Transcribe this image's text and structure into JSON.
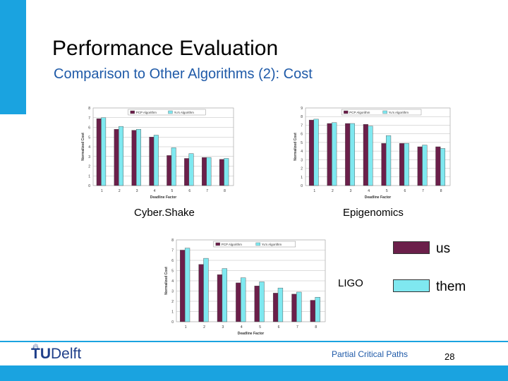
{
  "slide": {
    "title": "Performance Evaluation",
    "subtitle": "Comparison to Other Algorithms (2): Cost",
    "footer_text": "Partial Critical Paths",
    "page_number": "28",
    "logo_text_bold": "TU",
    "logo_text": "Delft"
  },
  "legend": {
    "us_label": "us",
    "them_label": "them",
    "us_color": "#6b1f4a",
    "them_color": "#7fe8f0"
  },
  "captions": {
    "cybershake": "Cyber.Shake",
    "epigenomics": "Epigenomics",
    "ligo": "LIGO"
  },
  "chart_data": [
    {
      "type": "bar",
      "categories": [
        "1",
        "2",
        "3",
        "4",
        "5",
        "6",
        "7",
        "8"
      ],
      "series": [
        {
          "name": "PCP Algorithm",
          "values": [
            6.9,
            5.8,
            5.7,
            5.0,
            3.1,
            2.8,
            2.9,
            2.7
          ]
        },
        {
          "name": "Yu's Algorithm",
          "values": [
            7.0,
            6.1,
            5.8,
            5.2,
            3.9,
            3.3,
            2.9,
            2.8
          ]
        }
      ],
      "xlabel": "Deadline Factor",
      "ylabel": "Normalized Cost",
      "ylim": [
        0,
        8
      ],
      "yticks": [
        0,
        1,
        2,
        3,
        4,
        5,
        6,
        7,
        8
      ],
      "grid": true,
      "legend_position": "top"
    },
    {
      "type": "bar",
      "categories": [
        "1",
        "2",
        "3",
        "4",
        "5",
        "6",
        "7",
        "8"
      ],
      "series": [
        {
          "name": "PCP Algorithm",
          "values": [
            7.6,
            7.2,
            7.2,
            7.1,
            4.9,
            4.9,
            4.5,
            4.5
          ]
        },
        {
          "name": "Yu's Algorithm",
          "values": [
            7.7,
            7.3,
            7.2,
            6.9,
            5.8,
            4.9,
            4.7,
            4.3
          ]
        }
      ],
      "xlabel": "Deadline Factor",
      "ylabel": "Normalized Cost",
      "ylim": [
        0,
        9
      ],
      "yticks": [
        0,
        1,
        2,
        3,
        4,
        5,
        6,
        7,
        8,
        9
      ],
      "grid": true,
      "legend_position": "top"
    },
    {
      "type": "bar",
      "categories": [
        "1",
        "2",
        "3",
        "4",
        "5",
        "6",
        "7",
        "8"
      ],
      "series": [
        {
          "name": "PCP Algorithm",
          "values": [
            7.0,
            5.6,
            4.6,
            3.8,
            3.5,
            2.8,
            2.7,
            2.1
          ]
        },
        {
          "name": "Yu's Algorithm",
          "values": [
            7.2,
            6.2,
            5.2,
            4.3,
            3.9,
            3.3,
            2.9,
            2.4
          ]
        }
      ],
      "xlabel": "Deadline Factor",
      "ylabel": "Normalized Cost",
      "ylim": [
        0,
        8
      ],
      "yticks": [
        0,
        1,
        2,
        3,
        4,
        5,
        6,
        7,
        8
      ],
      "grid": true,
      "legend_position": "top"
    }
  ]
}
